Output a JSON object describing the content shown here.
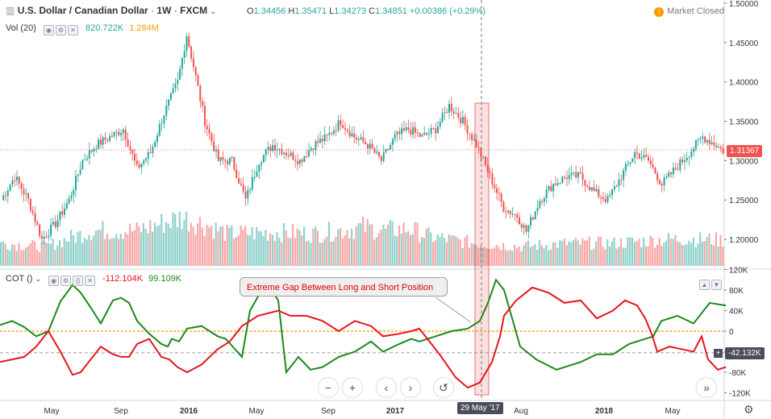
{
  "header": {
    "symbol": "U.S. Dollar / Canadian Dollar",
    "interval": "1W",
    "exchange": "FXCM",
    "open_k": "O",
    "open": "1.34456",
    "high_k": "H",
    "high": "1.35471",
    "low_k": "L",
    "low": "1.34273",
    "close_k": "C",
    "close": "1.34851",
    "change": "+0.00386 (+0.29%)",
    "market_status": "Market Closed",
    "market_icon": "!"
  },
  "volume_legend": {
    "label": "Vol (20)",
    "value1": "820.722K",
    "value2": "1.284M"
  },
  "cot_legend": {
    "label": "COT ()",
    "value1": "-112.104K",
    "value2": "99.109K"
  },
  "annotation": {
    "text": "Extreme Gap Between Long and Short Position"
  },
  "price_tags": {
    "last_price": "1.31367",
    "cot_cursor": "-42.132K",
    "date_cursor": "29 May '17"
  },
  "nav": {
    "zoom_out": "−",
    "zoom_in": "+",
    "back": "‹",
    "forward": "›",
    "reset": "↺",
    "scroll_end": "»",
    "settings": "⚙"
  },
  "colors": {
    "up": "#26a69a",
    "down": "#ef5350",
    "long": "#1b8a1b",
    "short": "#e8141c",
    "zero_line": "#ff9800",
    "highlight": "#f7c6c6"
  },
  "chart_data": [
    {
      "type": "candlestick",
      "title": "U.S. Dollar / Canadian Dollar, 1W, FXCM",
      "x_ticks": [
        "May",
        "Sep",
        "2016",
        "May",
        "Sep",
        "2017",
        "29 May '17",
        "Aug",
        "2018",
        "May"
      ],
      "y_ticks": [
        "1.50000",
        "1.45000",
        "1.40000",
        "1.35000",
        "1.30000",
        "1.25000",
        "1.20000"
      ],
      "ylim": [
        1.175,
        1.5
      ],
      "anchors": [
        [
          0,
          1.25
        ],
        [
          6,
          1.28
        ],
        [
          12,
          1.25
        ],
        [
          18,
          1.2
        ],
        [
          24,
          1.22
        ],
        [
          30,
          1.25
        ],
        [
          36,
          1.3
        ],
        [
          42,
          1.32
        ],
        [
          48,
          1.33
        ],
        [
          54,
          1.34
        ],
        [
          60,
          1.29
        ],
        [
          66,
          1.31
        ],
        [
          72,
          1.36
        ],
        [
          78,
          1.4
        ],
        [
          82,
          1.46
        ],
        [
          85,
          1.42
        ],
        [
          90,
          1.35
        ],
        [
          96,
          1.3
        ],
        [
          102,
          1.3
        ],
        [
          108,
          1.25
        ],
        [
          114,
          1.3
        ],
        [
          120,
          1.32
        ],
        [
          126,
          1.31
        ],
        [
          132,
          1.3
        ],
        [
          138,
          1.32
        ],
        [
          144,
          1.33
        ],
        [
          150,
          1.35
        ],
        [
          156,
          1.33
        ],
        [
          162,
          1.32
        ],
        [
          168,
          1.3
        ],
        [
          174,
          1.33
        ],
        [
          180,
          1.34
        ],
        [
          186,
          1.33
        ],
        [
          192,
          1.34
        ],
        [
          198,
          1.37
        ],
        [
          204,
          1.35
        ],
        [
          210,
          1.32
        ],
        [
          216,
          1.28
        ],
        [
          222,
          1.24
        ],
        [
          228,
          1.23
        ],
        [
          232,
          1.21
        ],
        [
          238,
          1.25
        ],
        [
          244,
          1.27
        ],
        [
          250,
          1.28
        ],
        [
          256,
          1.28
        ],
        [
          262,
          1.26
        ],
        [
          268,
          1.25
        ],
        [
          274,
          1.28
        ],
        [
          280,
          1.31
        ],
        [
          286,
          1.3
        ],
        [
          292,
          1.27
        ],
        [
          298,
          1.29
        ],
        [
          304,
          1.31
        ],
        [
          310,
          1.33
        ],
        [
          316,
          1.32
        ],
        [
          320,
          1.31
        ]
      ],
      "volume_anchors": [
        [
          0,
          0.35
        ],
        [
          20,
          0.3
        ],
        [
          40,
          0.55
        ],
        [
          60,
          0.55
        ],
        [
          80,
          0.75
        ],
        [
          90,
          0.65
        ],
        [
          100,
          0.5
        ],
        [
          120,
          0.52
        ],
        [
          140,
          0.5
        ],
        [
          160,
          0.6
        ],
        [
          170,
          0.55
        ],
        [
          180,
          0.58
        ],
        [
          190,
          0.45
        ],
        [
          200,
          0.4
        ],
        [
          210,
          0.35
        ],
        [
          230,
          0.3
        ],
        [
          250,
          0.35
        ],
        [
          270,
          0.35
        ],
        [
          290,
          0.4
        ],
        [
          300,
          0.42
        ],
        [
          320,
          0.4
        ]
      ],
      "last_price": 1.31367
    },
    {
      "type": "line",
      "title": "COT ()",
      "y_ticks": [
        "120K",
        "80K",
        "40K",
        "0",
        "-40K",
        "-80K",
        "-120K"
      ],
      "ylim": [
        -120000,
        120000
      ],
      "series": [
        {
          "name": "long",
          "color": "#1b8a1b",
          "points": [
            [
              0,
              12
            ],
            [
              15,
              20
            ],
            [
              30,
              8
            ],
            [
              45,
              -10
            ],
            [
              60,
              0
            ],
            [
              75,
              58
            ],
            [
              90,
              90
            ],
            [
              100,
              75
            ],
            [
              115,
              40
            ],
            [
              125,
              15
            ],
            [
              140,
              60
            ],
            [
              150,
              65
            ],
            [
              160,
              55
            ],
            [
              170,
              20
            ],
            [
              185,
              -5
            ],
            [
              200,
              -25
            ],
            [
              208,
              -30
            ],
            [
              213,
              -15
            ],
            [
              222,
              -20
            ],
            [
              232,
              5
            ],
            [
              250,
              10
            ],
            [
              270,
              -10
            ],
            [
              280,
              -15
            ],
            [
              300,
              -50
            ],
            [
              310,
              40
            ],
            [
              330,
              95
            ],
            [
              345,
              60
            ],
            [
              355,
              -80
            ],
            [
              370,
              -50
            ],
            [
              385,
              -75
            ],
            [
              400,
              -70
            ],
            [
              420,
              -50
            ],
            [
              440,
              -40
            ],
            [
              460,
              -20
            ],
            [
              475,
              -40
            ],
            [
              495,
              -25
            ],
            [
              510,
              -15
            ],
            [
              520,
              -20
            ],
            [
              540,
              -10
            ],
            [
              560,
              0
            ],
            [
              580,
              5
            ],
            [
              595,
              20
            ],
            [
              605,
              55
            ],
            [
              615,
              100
            ],
            [
              625,
              80
            ],
            [
              645,
              -30
            ],
            [
              665,
              -55
            ],
            [
              690,
              -75
            ],
            [
              720,
              -60
            ],
            [
              740,
              -45
            ],
            [
              760,
              -45
            ],
            [
              780,
              -25
            ],
            [
              810,
              -10
            ],
            [
              820,
              20
            ],
            [
              840,
              30
            ],
            [
              860,
              15
            ],
            [
              880,
              55
            ],
            [
              900,
              50
            ]
          ]
        },
        {
          "name": "short",
          "color": "#e8141c",
          "points": [
            [
              0,
              -60
            ],
            [
              15,
              -55
            ],
            [
              30,
              -50
            ],
            [
              45,
              -30
            ],
            [
              60,
              0
            ],
            [
              75,
              -40
            ],
            [
              90,
              -85
            ],
            [
              100,
              -80
            ],
            [
              115,
              -50
            ],
            [
              125,
              -30
            ],
            [
              140,
              -45
            ],
            [
              150,
              -50
            ],
            [
              160,
              -50
            ],
            [
              170,
              -25
            ],
            [
              185,
              -15
            ],
            [
              200,
              -50
            ],
            [
              210,
              -55
            ],
            [
              220,
              -70
            ],
            [
              232,
              -80
            ],
            [
              250,
              -65
            ],
            [
              270,
              -35
            ],
            [
              285,
              -20
            ],
            [
              300,
              10
            ],
            [
              320,
              30
            ],
            [
              345,
              40
            ],
            [
              360,
              30
            ],
            [
              380,
              30
            ],
            [
              400,
              20
            ],
            [
              420,
              0
            ],
            [
              440,
              20
            ],
            [
              460,
              10
            ],
            [
              475,
              -10
            ],
            [
              495,
              -5
            ],
            [
              510,
              0
            ],
            [
              520,
              5
            ],
            [
              545,
              -45
            ],
            [
              565,
              -90
            ],
            [
              580,
              -110
            ],
            [
              595,
              -100
            ],
            [
              610,
              -60
            ],
            [
              620,
              -10
            ],
            [
              625,
              30
            ],
            [
              640,
              60
            ],
            [
              660,
              85
            ],
            [
              680,
              75
            ],
            [
              700,
              55
            ],
            [
              720,
              60
            ],
            [
              740,
              25
            ],
            [
              760,
              40
            ],
            [
              775,
              60
            ],
            [
              790,
              50
            ],
            [
              800,
              25
            ],
            [
              808,
              -5
            ],
            [
              815,
              -40
            ],
            [
              830,
              -30
            ],
            [
              845,
              -35
            ],
            [
              860,
              -40
            ],
            [
              870,
              -10
            ],
            [
              878,
              -55
            ],
            [
              890,
              -75
            ],
            [
              900,
              -70
            ]
          ]
        }
      ],
      "highlight_date": "29 May '17",
      "cursor_value": "-42.132K"
    }
  ]
}
